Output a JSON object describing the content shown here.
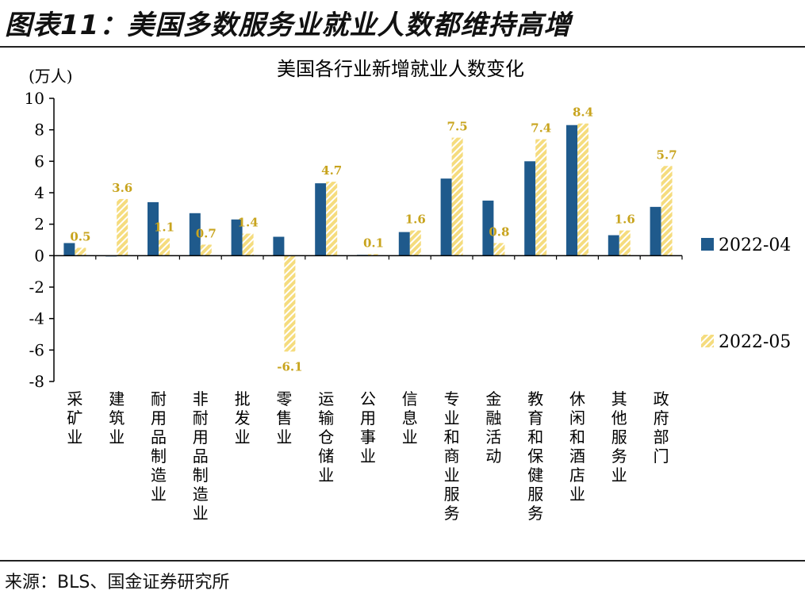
{
  "figure": {
    "title": "图表11：美国多数服务业就业人数都维持高增",
    "source": "来源：BLS、国金证券研究所"
  },
  "colors": {
    "series_1": "#1F5A8C",
    "series_2": "#F5DC7E",
    "series_2_stripe": "#FFFFFF",
    "label": "#C8A41E",
    "axis": "#000000"
  },
  "chart_data": {
    "type": "bar",
    "title": "美国各行业新增就业人数变化",
    "ylabel": "(万人)",
    "xlabel": "",
    "ylim": [
      -8,
      10
    ],
    "yticks": [
      10,
      8,
      6,
      4,
      2,
      0,
      -2,
      -4,
      -6,
      -8
    ],
    "legend_position": "right",
    "categories": [
      "采矿业",
      "建筑业",
      "耐用品制造业",
      "非耐用品制造业",
      "批发业",
      "零售业",
      "运输仓储业",
      "公用事业",
      "信息业",
      "专业和商业服务",
      "金融活动",
      "教育和保健服务",
      "休闲和酒店业",
      "其他服务业",
      "政府部门"
    ],
    "series": [
      {
        "name": "2022-04",
        "values": [
          0.8,
          0.0,
          3.4,
          2.7,
          2.3,
          1.2,
          4.6,
          0.05,
          1.5,
          4.9,
          3.5,
          6.0,
          8.3,
          1.3,
          3.1
        ]
      },
      {
        "name": "2022-05",
        "values": [
          0.5,
          3.6,
          1.1,
          0.7,
          1.4,
          -6.1,
          4.7,
          0.1,
          1.6,
          7.5,
          0.8,
          7.4,
          8.4,
          1.6,
          5.7
        ]
      }
    ],
    "data_labels_series": "2022-05",
    "data_labels": [
      "0.5",
      "3.6",
      "1.1",
      "0.7",
      "1.4",
      "-6.1",
      "4.7",
      "0.1",
      "1.6",
      "7.5",
      "0.8",
      "7.4",
      "8.4",
      "1.6",
      "5.7"
    ]
  }
}
